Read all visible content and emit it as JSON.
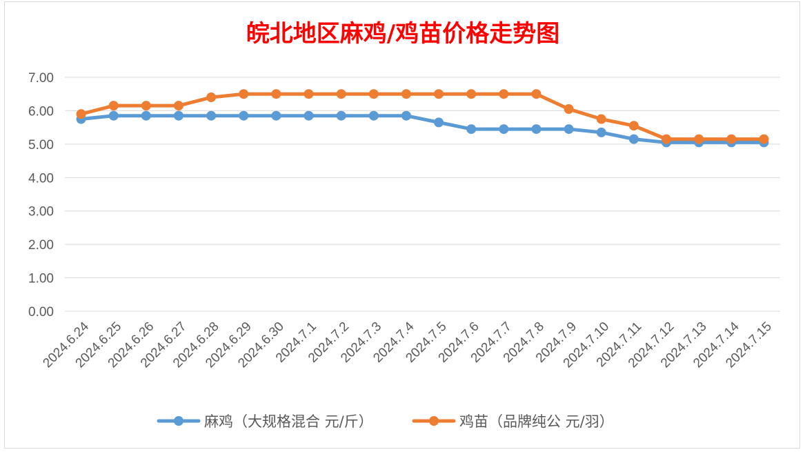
{
  "chart_data": {
    "type": "line",
    "title": "皖北地区麻鸡/鸡苗价格走势图",
    "xlabel": "",
    "ylabel": "",
    "ylim": [
      0,
      7
    ],
    "yticks": [
      "0.00",
      "1.00",
      "2.00",
      "3.00",
      "4.00",
      "5.00",
      "6.00",
      "7.00"
    ],
    "grid": true,
    "legend_position": "bottom",
    "categories": [
      "2024.6.24",
      "2024.6.25",
      "2024.6.26",
      "2024.6.27",
      "2024.6.28",
      "2024.6.29",
      "2024.6.30",
      "2024.7.1",
      "2024.7.2",
      "2024.7.3",
      "2024.7.4",
      "2024.7.5",
      "2024.7.6",
      "2024.7.7",
      "2024.7.8",
      "2024.7.9",
      "2024.7.10",
      "2024.7.11",
      "2024.7.12",
      "2024.7.13",
      "2024.7.14",
      "2024.7.15"
    ],
    "series": [
      {
        "name": "麻鸡（大规格混合 元/斤）",
        "color": "#5b9bd5",
        "values": [
          5.75,
          5.85,
          5.85,
          5.85,
          5.85,
          5.85,
          5.85,
          5.85,
          5.85,
          5.85,
          5.85,
          5.65,
          5.45,
          5.45,
          5.45,
          5.45,
          5.35,
          5.15,
          5.05,
          5.05,
          5.05,
          5.05
        ]
      },
      {
        "name": "鸡苗（品牌纯公 元/羽）",
        "color": "#ed7d31",
        "values": [
          5.9,
          6.15,
          6.15,
          6.15,
          6.4,
          6.5,
          6.5,
          6.5,
          6.5,
          6.5,
          6.5,
          6.5,
          6.5,
          6.5,
          6.5,
          6.05,
          5.75,
          5.55,
          5.15,
          5.15,
          5.15,
          5.15
        ]
      }
    ]
  }
}
